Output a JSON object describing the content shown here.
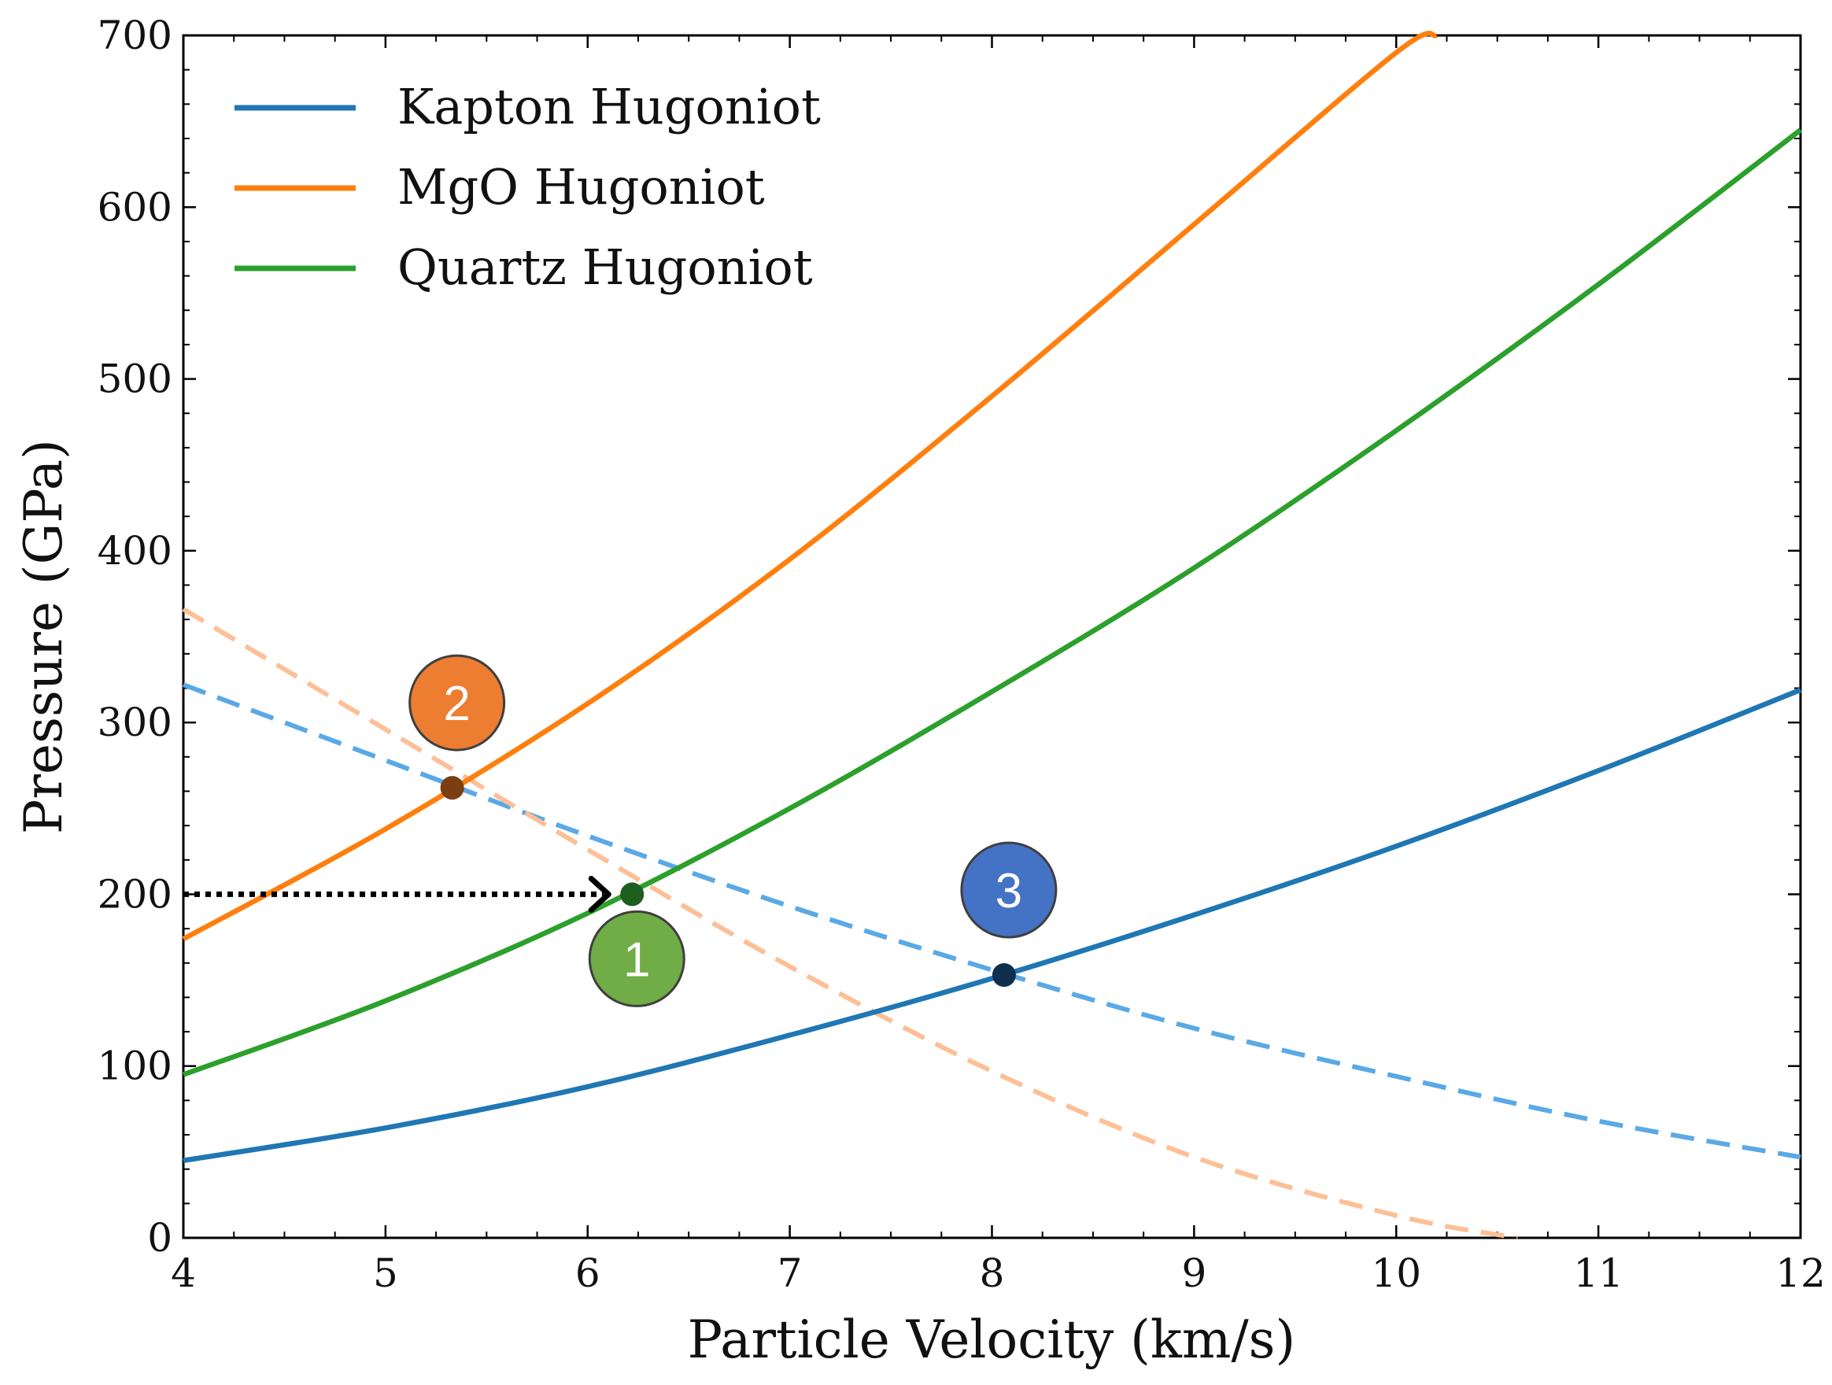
{
  "chart_data": {
    "type": "line",
    "xlabel": "Particle Velocity (km/s)",
    "ylabel": "Pressure (GPa)",
    "xlim": [
      4,
      12
    ],
    "ylim": [
      0,
      700
    ],
    "xticks": [
      4,
      5,
      6,
      7,
      8,
      9,
      10,
      11,
      12
    ],
    "yticks": [
      0,
      100,
      200,
      300,
      400,
      500,
      600,
      700
    ],
    "legend_position": "top-left",
    "series": [
      {
        "name": "Kapton Hugoniot",
        "color": "#1f77b4",
        "style": "solid",
        "x": [
          4,
          5,
          6,
          7,
          8,
          9,
          10,
          11,
          12
        ],
        "y": [
          45,
          64,
          88,
          118,
          151,
          188,
          228,
          272,
          319
        ]
      },
      {
        "name": "MgO Hugoniot",
        "color": "#ff7f0e",
        "style": "solid",
        "x": [
          4,
          5,
          6,
          7,
          8,
          9,
          10,
          10.2
        ],
        "y": [
          174,
          238,
          311,
          395,
          490,
          590,
          690,
          700
        ]
      },
      {
        "name": "Quartz Hugoniot",
        "color": "#2ca02c",
        "style": "solid",
        "x": [
          4,
          5,
          6,
          7,
          8,
          9,
          10,
          11,
          12
        ],
        "y": [
          95,
          138,
          189,
          250,
          318,
          390,
          470,
          555,
          645
        ]
      },
      {
        "color": "#5aa9e6",
        "style": "dashed",
        "x": [
          4,
          5,
          6,
          7,
          8,
          9,
          10,
          11,
          12
        ],
        "y": [
          322,
          278,
          234,
          193,
          156,
          122,
          94,
          68,
          47
        ]
      },
      {
        "color": "#fdbf95",
        "style": "dashed",
        "x": [
          4,
          5,
          6,
          7,
          8,
          9,
          10,
          10.6
        ],
        "y": [
          366,
          296,
          226,
          158,
          97,
          47,
          13,
          0
        ]
      }
    ],
    "points": [
      {
        "label": "1",
        "x": 6.22,
        "y": 200,
        "dot_color": "#1e5e1e",
        "badge_color": "#70ad47",
        "badge_position": "below"
      },
      {
        "label": "2",
        "x": 5.33,
        "y": 262,
        "dot_color": "#7a3e12",
        "badge_color": "#ed7d31",
        "badge_position": "above"
      },
      {
        "label": "3",
        "x": 8.06,
        "y": 153,
        "dot_color": "#0f2f4d",
        "badge_color": "#4472c4",
        "badge_position": "above"
      }
    ],
    "annotation_arrow": {
      "y": 200,
      "x_from": 4,
      "x_to": 6.22,
      "style": "dotted",
      "color": "#000000"
    }
  }
}
